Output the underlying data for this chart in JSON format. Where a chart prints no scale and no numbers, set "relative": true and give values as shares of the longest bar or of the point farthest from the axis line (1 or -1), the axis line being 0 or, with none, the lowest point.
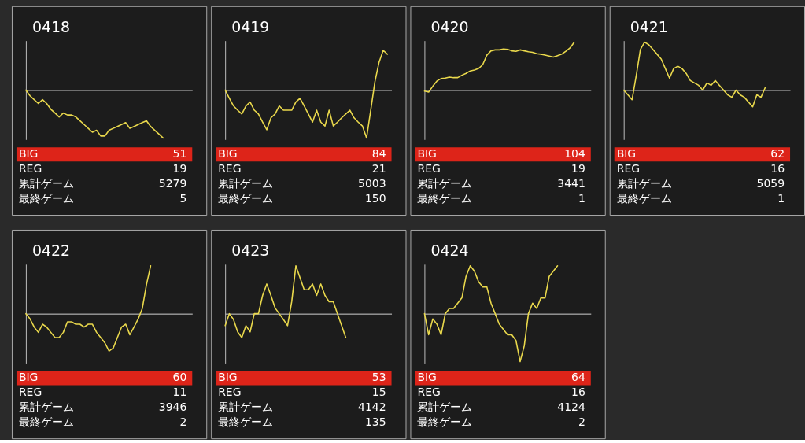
{
  "chart_data": [
    {
      "type": "line",
      "title": "0418",
      "relative": true,
      "categories": [
        null,
        null,
        null,
        null,
        null,
        null,
        null,
        null,
        null,
        null,
        null,
        null,
        null,
        null,
        null,
        null,
        null,
        null,
        null,
        null,
        null,
        null,
        null,
        null,
        null,
        null,
        null,
        null,
        null,
        null,
        null,
        null,
        null,
        null,
        null,
        null,
        null,
        null,
        null,
        null,
        null
      ],
      "series": [
        {
          "color": "#e9d84c",
          "values": [
            0,
            -0.12,
            -0.2,
            -0.28,
            -0.2,
            -0.28,
            -0.4,
            -0.48,
            -0.56,
            -0.48,
            -0.52,
            -0.52,
            -0.56,
            -0.64,
            -0.72,
            -0.8,
            -0.88,
            -0.84,
            -0.96,
            -0.96,
            -0.84,
            -0.8,
            -0.76,
            -0.72,
            -0.68,
            -0.8,
            -0.76,
            -0.72,
            -0.68,
            -0.64,
            -0.76,
            -0.84,
            -0.92,
            -1,
            null,
            null,
            null,
            null,
            null,
            null,
            null
          ]
        }
      ],
      "annotations": [
        "BIG",
        "51",
        "REG",
        "19",
        "累計ゲーム",
        "5279",
        "最終ゲーム",
        "5"
      ]
    },
    {
      "type": "line",
      "title": "0419",
      "relative": true,
      "categories": [
        null,
        null,
        null,
        null,
        null,
        null,
        null,
        null,
        null,
        null,
        null,
        null,
        null,
        null,
        null,
        null,
        null,
        null,
        null,
        null,
        null,
        null,
        null,
        null,
        null,
        null,
        null,
        null,
        null,
        null,
        null,
        null,
        null,
        null,
        null,
        null,
        null,
        null,
        null,
        null,
        null
      ],
      "series": [
        {
          "color": "#e9d84c",
          "values": [
            0,
            -0.17,
            -0.33,
            -0.42,
            -0.5,
            -0.33,
            -0.25,
            -0.42,
            -0.5,
            -0.67,
            -0.83,
            -0.58,
            -0.5,
            -0.33,
            -0.42,
            -0.42,
            -0.42,
            -0.25,
            -0.17,
            -0.33,
            -0.5,
            -0.67,
            -0.42,
            -0.67,
            -0.75,
            -0.42,
            -0.75,
            -0.67,
            -0.58,
            -0.5,
            -0.42,
            -0.58,
            -0.67,
            -0.75,
            -1,
            -0.42,
            0.17,
            0.58,
            0.83,
            0.75,
            null
          ]
        }
      ],
      "annotations": [
        "BIG",
        "84",
        "REG",
        "21",
        "累計ゲーム",
        "5003",
        "最終ゲーム",
        "150"
      ]
    },
    {
      "type": "line",
      "title": "0420",
      "relative": true,
      "categories": [
        null,
        null,
        null,
        null,
        null,
        null,
        null,
        null,
        null,
        null,
        null,
        null,
        null,
        null,
        null,
        null,
        null,
        null,
        null,
        null,
        null,
        null,
        null,
        null,
        null,
        null,
        null,
        null,
        null,
        null,
        null,
        null,
        null,
        null,
        null,
        null,
        null,
        null,
        null,
        null,
        null
      ],
      "series": [
        {
          "color": "#e9d84c",
          "values": [
            -0.02,
            -0.04,
            0.08,
            0.19,
            0.24,
            0.25,
            0.27,
            0.26,
            0.26,
            0.31,
            0.35,
            0.4,
            0.42,
            0.45,
            0.53,
            0.73,
            0.82,
            0.84,
            0.84,
            0.86,
            0.85,
            0.82,
            0.81,
            0.84,
            0.82,
            0.8,
            0.79,
            0.76,
            0.75,
            0.73,
            0.71,
            0.69,
            0.72,
            0.75,
            0.81,
            0.88,
            1,
            null,
            null,
            null,
            null
          ]
        }
      ],
      "annotations": [
        "BIG",
        "104",
        "REG",
        "19",
        "累計ゲーム",
        "3441",
        "最終ゲーム",
        "1"
      ]
    },
    {
      "type": "line",
      "title": "0421",
      "relative": true,
      "categories": [
        null,
        null,
        null,
        null,
        null,
        null,
        null,
        null,
        null,
        null,
        null,
        null,
        null,
        null,
        null,
        null,
        null,
        null,
        null,
        null,
        null,
        null,
        null,
        null,
        null,
        null,
        null,
        null,
        null,
        null,
        null,
        null,
        null,
        null,
        null,
        null,
        null,
        null,
        null,
        null,
        null
      ],
      "series": [
        {
          "color": "#e9d84c",
          "values": [
            0,
            -0.1,
            -0.2,
            0.3,
            0.85,
            1,
            0.95,
            0.85,
            0.75,
            0.65,
            0.45,
            0.25,
            0.45,
            0.5,
            0.45,
            0.35,
            0.2,
            0.15,
            0.1,
            0,
            0.15,
            0.1,
            0.2,
            0.1,
            0,
            -0.1,
            -0.15,
            0,
            -0.1,
            -0.15,
            -0.25,
            -0.35,
            -0.1,
            -0.15,
            0.05,
            null,
            null,
            null,
            null,
            null,
            null
          ]
        }
      ],
      "annotations": [
        "BIG",
        "62",
        "REG",
        "16",
        "累計ゲーム",
        "5059",
        "最終ゲーム",
        "1"
      ]
    },
    {
      "type": "line",
      "title": "0422",
      "relative": true,
      "categories": [
        null,
        null,
        null,
        null,
        null,
        null,
        null,
        null,
        null,
        null,
        null,
        null,
        null,
        null,
        null,
        null,
        null,
        null,
        null,
        null,
        null,
        null,
        null,
        null,
        null,
        null,
        null,
        null,
        null,
        null,
        null,
        null,
        null,
        null,
        null,
        null,
        null,
        null,
        null,
        null,
        null
      ],
      "series": [
        {
          "color": "#e9d84c",
          "values": [
            0,
            -0.11,
            -0.28,
            -0.39,
            -0.22,
            -0.28,
            -0.39,
            -0.5,
            -0.5,
            -0.39,
            -0.17,
            -0.17,
            -0.22,
            -0.22,
            -0.28,
            -0.22,
            -0.22,
            -0.39,
            -0.5,
            -0.61,
            -0.78,
            -0.72,
            -0.5,
            -0.28,
            -0.22,
            -0.44,
            -0.28,
            -0.11,
            0.11,
            0.61,
            1,
            null,
            null,
            null,
            null,
            null,
            null,
            null,
            null,
            null,
            null
          ]
        }
      ],
      "annotations": [
        "BIG",
        "60",
        "REG",
        "11",
        "累計ゲーム",
        "3946",
        "最終ゲーム",
        "2"
      ]
    },
    {
      "type": "line",
      "title": "0423",
      "relative": true,
      "categories": [
        null,
        null,
        null,
        null,
        null,
        null,
        null,
        null,
        null,
        null,
        null,
        null,
        null,
        null,
        null,
        null,
        null,
        null,
        null,
        null,
        null,
        null,
        null,
        null,
        null,
        null,
        null,
        null,
        null,
        null,
        null,
        null,
        null,
        null,
        null,
        null,
        null,
        null,
        null,
        null,
        null
      ],
      "series": [
        {
          "color": "#e9d84c",
          "values": [
            -0.25,
            0,
            -0.12,
            -0.38,
            -0.5,
            -0.25,
            -0.38,
            0,
            0,
            0.38,
            0.62,
            0.38,
            0.12,
            0,
            -0.12,
            -0.25,
            0.25,
            1,
            0.75,
            0.5,
            0.5,
            0.62,
            0.38,
            0.62,
            0.38,
            0.25,
            0.25,
            0,
            -0.25,
            -0.5,
            null,
            null,
            null,
            null,
            null,
            null,
            null,
            null,
            null,
            null,
            null
          ]
        }
      ],
      "annotations": [
        "BIG",
        "53",
        "REG",
        "15",
        "累計ゲーム",
        "4142",
        "最終ゲーム",
        "135"
      ]
    },
    {
      "type": "line",
      "title": "0424",
      "relative": true,
      "categories": [
        null,
        null,
        null,
        null,
        null,
        null,
        null,
        null,
        null,
        null,
        null,
        null,
        null,
        null,
        null,
        null,
        null,
        null,
        null,
        null,
        null,
        null,
        null,
        null,
        null,
        null,
        null,
        null,
        null,
        null,
        null,
        null,
        null,
        null,
        null,
        null,
        null,
        null,
        null,
        null,
        null
      ],
      "series": [
        {
          "color": "#e9d84c",
          "values": [
            0,
            -0.44,
            -0.11,
            -0.22,
            -0.44,
            0,
            0.11,
            0.11,
            0.22,
            0.33,
            0.78,
            1,
            0.89,
            0.67,
            0.56,
            0.56,
            0.22,
            0,
            -0.22,
            -0.33,
            -0.44,
            -0.44,
            -0.56,
            -1,
            -0.67,
            0,
            0.22,
            0.11,
            0.33,
            0.33,
            0.78,
            0.89,
            1,
            null,
            null,
            null,
            null,
            null,
            null,
            null,
            null
          ]
        }
      ],
      "annotations": [
        "BIG",
        "64",
        "REG",
        "16",
        "累計ゲーム",
        "4124",
        "最終ゲーム",
        "2"
      ]
    }
  ]
}
